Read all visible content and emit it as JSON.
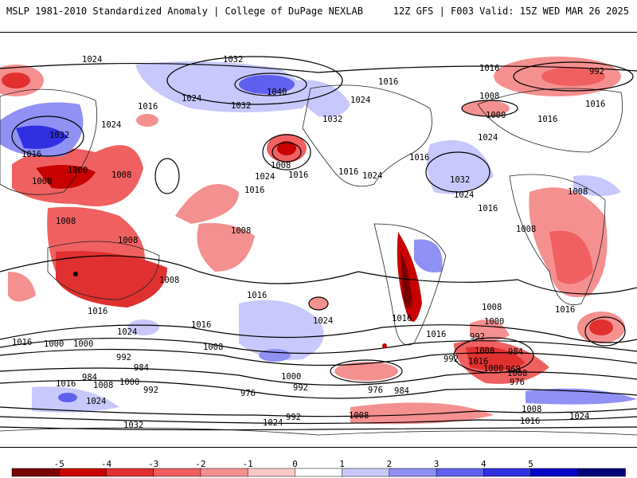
{
  "header": {
    "left": "MSLP 1981-2010 Standardized Anomaly | College of DuPage NEXLAB",
    "right": "12Z GFS | F003 Valid: 15Z WED MAR 26 2025"
  },
  "colorbar": {
    "ticks": [
      "-5",
      "-4",
      "-3",
      "-2",
      "-1",
      "0",
      "1",
      "2",
      "3",
      "4",
      "5"
    ],
    "colors": [
      "#7a0000",
      "#c80000",
      "#e03030",
      "#f06060",
      "#f59090",
      "#fcc8c8",
      "#ffffff",
      "#c8c8fc",
      "#9090f5",
      "#6060ee",
      "#3030e0",
      "#0000c8",
      "#00007a"
    ]
  },
  "isobar_labels": [
    "1024",
    "1032",
    "1040",
    "1032",
    "1024",
    "1016",
    "1016",
    "1024",
    "1032",
    "1016",
    "992",
    "1016",
    "1008",
    "1000",
    "1016",
    "1024",
    "1032",
    "1024",
    "1000",
    "1008",
    "1016",
    "1008",
    "1024",
    "1016",
    "1008",
    "1016",
    "1032",
    "1024",
    "1016",
    "1016",
    "1008",
    "1024",
    "1016",
    "1008",
    "1008",
    "1016",
    "1008",
    "1016",
    "1008",
    "1008",
    "1016",
    "1024",
    "1016",
    "1024",
    "1016",
    "1016",
    "1000",
    "1008",
    "992",
    "984",
    "984",
    "1016",
    "1008",
    "1000",
    "992",
    "976",
    "1024",
    "1032",
    "1008",
    "1000",
    "992",
    "1008",
    "1016",
    "1000",
    "1008",
    "992",
    "984",
    "968",
    "976",
    "976",
    "984",
    "1000",
    "992",
    "1016",
    "1000",
    "992",
    "1024",
    "1008",
    "1024",
    "1016",
    "1008"
  ]
}
